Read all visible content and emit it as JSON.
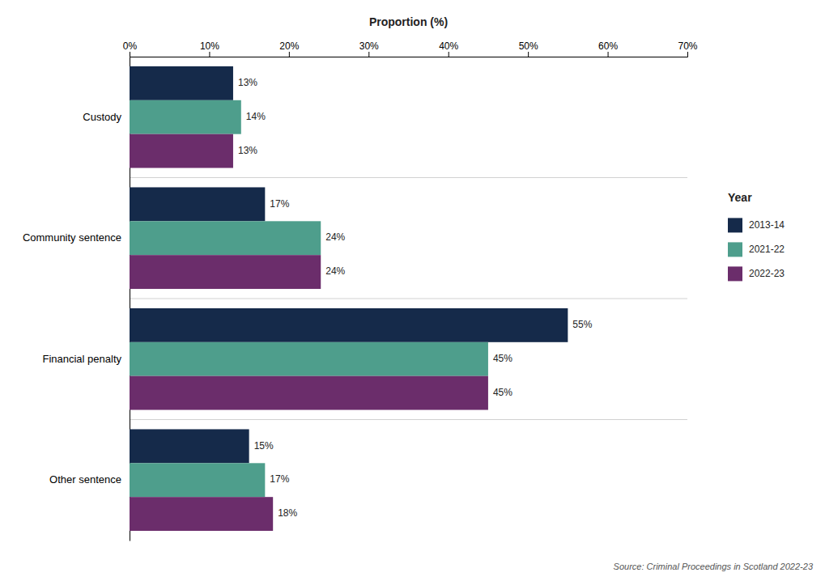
{
  "chart_data": {
    "type": "bar",
    "orientation": "horizontal",
    "categories": [
      "Custody",
      "Community sentence",
      "Financial penalty",
      "Other sentence"
    ],
    "series": [
      {
        "name": "2013-14",
        "color": "#152a4a",
        "values": [
          13,
          17,
          55,
          15
        ],
        "value_labels": [
          "13%",
          "17%",
          "55%",
          "15%"
        ]
      },
      {
        "name": "2021-22",
        "color": "#4e9e8c",
        "values": [
          14,
          24,
          45,
          17
        ],
        "value_labels": [
          "14%",
          "24%",
          "45%",
          "17%"
        ]
      },
      {
        "name": "2022-23",
        "color": "#6b2d6b",
        "values": [
          13,
          24,
          45,
          18
        ],
        "value_labels": [
          "13%",
          "24%",
          "45%",
          "18%"
        ]
      }
    ],
    "xlabel": "Proportion (%)",
    "xlim": [
      0,
      70
    ],
    "xticks": [
      {
        "value": 0,
        "label": "0%"
      },
      {
        "value": 10,
        "label": "10%"
      },
      {
        "value": 20,
        "label": "20%"
      },
      {
        "value": 30,
        "label": "30%"
      },
      {
        "value": 40,
        "label": "40%"
      },
      {
        "value": 50,
        "label": "50%"
      },
      {
        "value": 60,
        "label": "60%"
      },
      {
        "value": 70,
        "label": "70%"
      }
    ],
    "data_labels": true,
    "grid": false,
    "legend": "right",
    "legend_title": "Year",
    "source": "Source: Criminal Proceedings in Scotland 2022-23"
  }
}
